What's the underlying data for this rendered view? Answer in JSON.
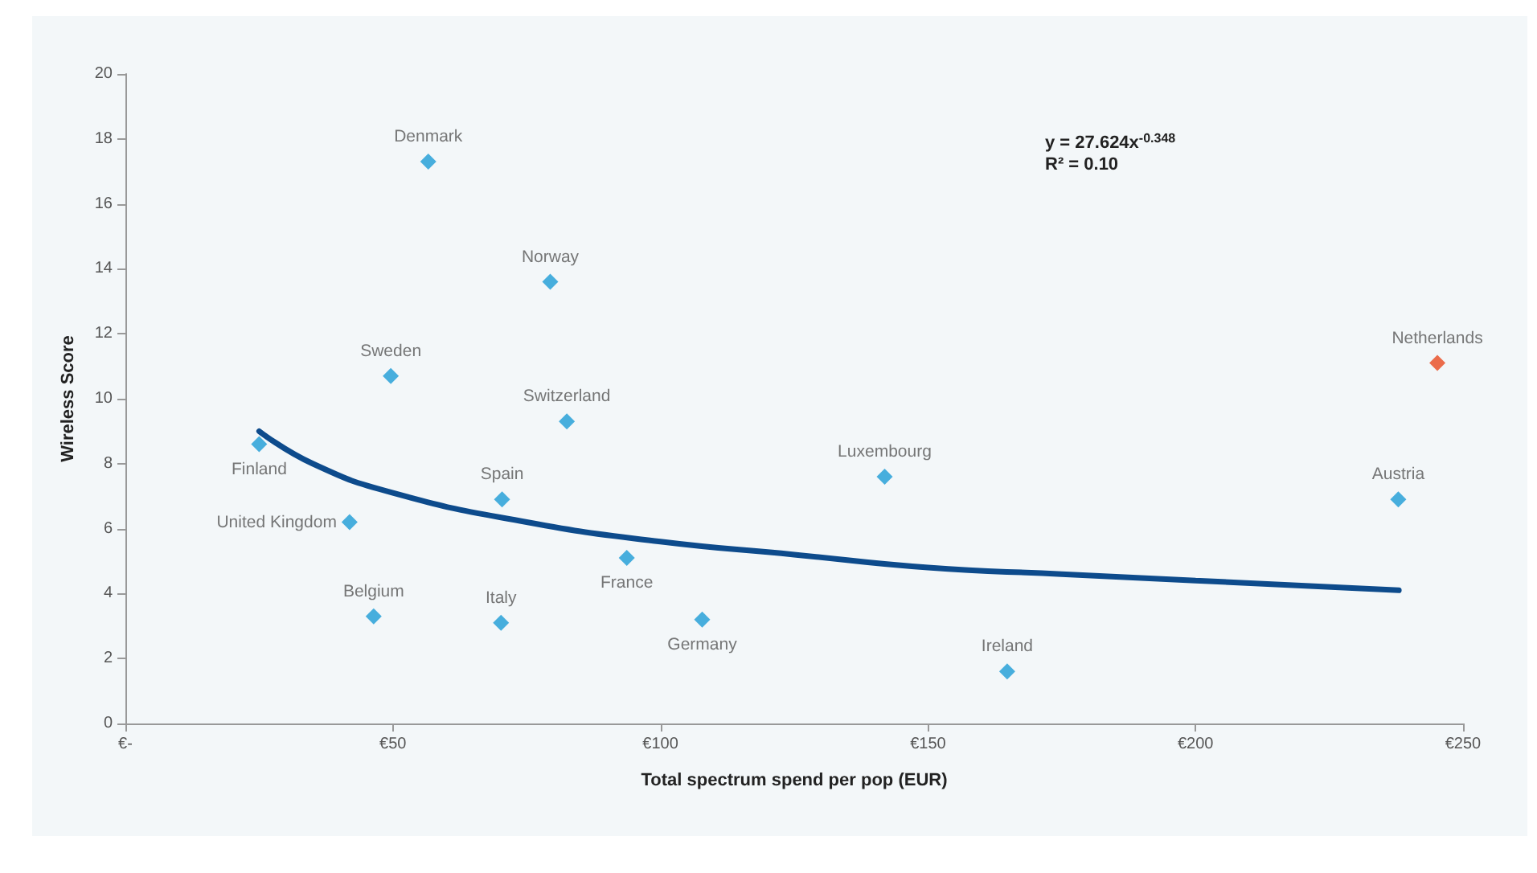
{
  "chart_data": {
    "type": "scatter",
    "xlabel": "Total spectrum spend per pop (EUR)",
    "ylabel": "Wireless Score",
    "xlim": [
      0,
      250
    ],
    "xticks": [
      {
        "value": 0,
        "label": "€-"
      },
      {
        "value": 50,
        "label": "€50"
      },
      {
        "value": 100,
        "label": "€100"
      },
      {
        "value": 150,
        "label": "€150"
      },
      {
        "value": 200,
        "label": "€200"
      },
      {
        "value": 250,
        "label": "€250"
      }
    ],
    "ylim": [
      0,
      20
    ],
    "yticks": [
      0,
      2,
      4,
      6,
      8,
      10,
      12,
      14,
      16,
      18,
      20
    ],
    "grid": false,
    "series": [
      {
        "marker": "diamond",
        "x": [
          56.6,
          79.4,
          49.6,
          82.5,
          25.0,
          70.4,
          41.9,
          93.7,
          46.4,
          70.2,
          107.8,
          141.9,
          164.8,
          237.9,
          245.2
        ],
        "values": [
          17.3,
          13.6,
          10.7,
          9.3,
          8.6,
          6.9,
          6.2,
          5.1,
          3.3,
          3.1,
          3.2,
          7.6,
          1.6,
          6.9,
          11.1
        ],
        "colors": [
          "#1b9bd6",
          "#1b9bd6",
          "#1b9bd6",
          "#1b9bd6",
          "#1b9bd6",
          "#1b9bd6",
          "#1b9bd6",
          "#1b9bd6",
          "#1b9bd6",
          "#1b9bd6",
          "#1b9bd6",
          "#1b9bd6",
          "#1b9bd6",
          "#1b9bd6",
          "#e8481f"
        ]
      },
      {
        "type": "line",
        "color": "#0d4b8c",
        "x": [
          25,
          35,
          50,
          75,
          100,
          125,
          150,
          175,
          200,
          238
        ],
        "values": [
          9.0,
          8.0,
          7.1,
          6.2,
          5.6,
          5.2,
          4.8,
          4.6,
          4.4,
          4.1
        ]
      }
    ],
    "annotations": [
      {
        "text": "Denmark",
        "x": 56.6,
        "y": 17.3
      },
      {
        "text": "Norway",
        "x": 79.4,
        "y": 13.6
      },
      {
        "text": "Sweden",
        "x": 49.6,
        "y": 10.7
      },
      {
        "text": "Switzerland",
        "x": 82.5,
        "y": 9.3
      },
      {
        "text": "Finland",
        "x": 25.0,
        "y": 8.6
      },
      {
        "text": "Spain",
        "x": 70.4,
        "y": 6.9
      },
      {
        "text": "United Kingdom",
        "x": 41.9,
        "y": 6.2
      },
      {
        "text": "France",
        "x": 93.7,
        "y": 5.1
      },
      {
        "text": "Belgium",
        "x": 46.4,
        "y": 3.3
      },
      {
        "text": "Italy",
        "x": 70.2,
        "y": 3.1
      },
      {
        "text": "Germany",
        "x": 107.8,
        "y": 3.2
      },
      {
        "text": "Luxembourg",
        "x": 141.9,
        "y": 7.6
      },
      {
        "text": "Ireland",
        "x": 164.8,
        "y": 1.6
      },
      {
        "text": "Austria",
        "x": 237.9,
        "y": 6.9
      },
      {
        "text": "Netherlands",
        "x": 245.2,
        "y": 11.1
      },
      "y = 27.624x$^{-0.348}$",
      "R² = 0.10"
    ]
  }
}
